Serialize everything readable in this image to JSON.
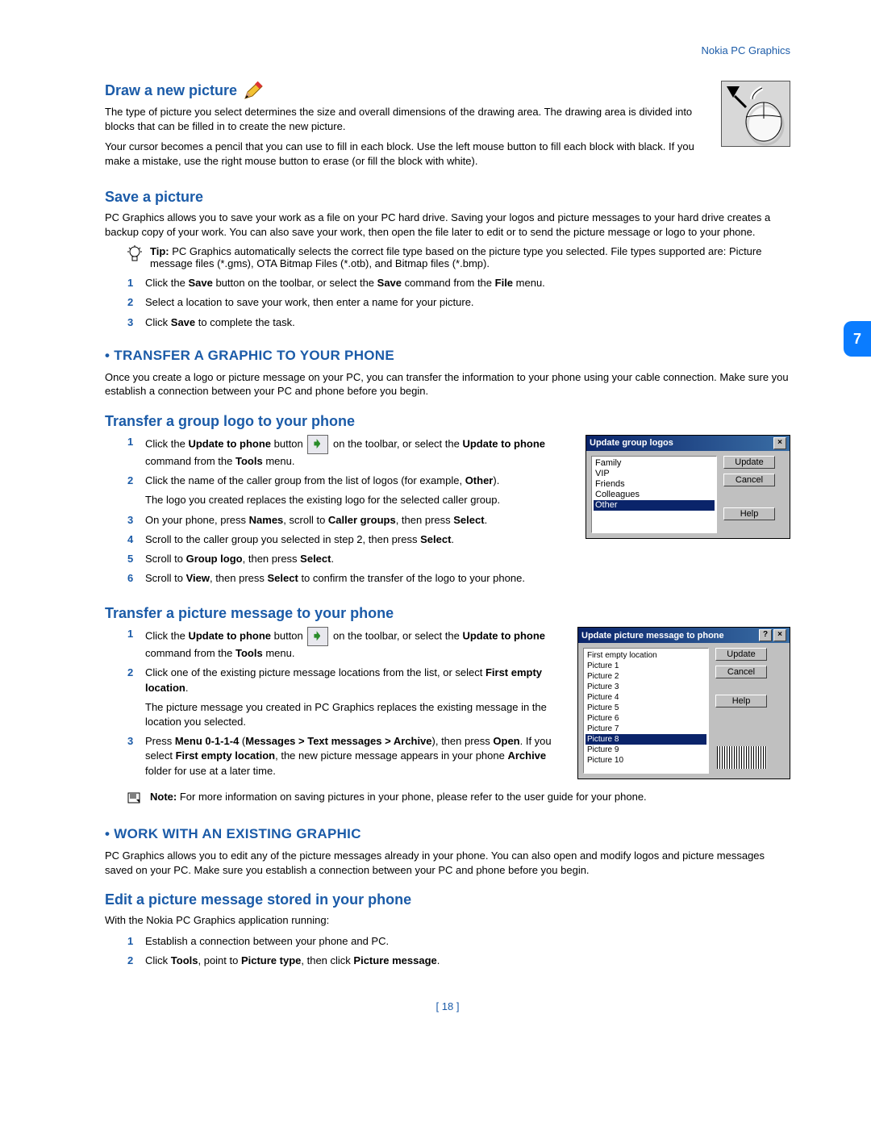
{
  "header": {
    "product": "Nokia PC Graphics"
  },
  "chapter_tab": "7",
  "page_number": "[ 18 ]",
  "sections": {
    "draw": {
      "title": "Draw a new picture",
      "p1": "The type of picture you select determines the size and overall dimensions of the drawing area. The drawing area is divided into blocks that can be filled in to create the new picture.",
      "p2": "Your cursor becomes a pencil that you can use to fill in each block. Use the left mouse button to fill each block with black. If you make a mistake, use the right mouse button to erase (or fill the block with white)."
    },
    "save": {
      "title": "Save a picture",
      "p1": "PC Graphics allows you to save your work as a file on your PC hard drive. Saving your logos and picture messages to your hard drive creates a backup copy of your work. You can also save your work, then open the file later to edit or to send the picture message or logo to your phone.",
      "tip_label": "Tip:",
      "tip_body": "PC Graphics automatically selects the correct file type based on the picture type you selected. File types supported are: Picture message files (*.gms), OTA Bitmap Files (*.otb), and Bitmap files (*.bmp).",
      "li1_a": "Click the ",
      "li1_b": "Save",
      "li1_c": " button on the toolbar, or select the ",
      "li1_d": "Save",
      "li1_e": " command from the ",
      "li1_f": "File",
      "li1_g": " menu.",
      "li2": "Select a location to save your work, then enter a name for your picture.",
      "li3_a": "Click ",
      "li3_b": "Save",
      "li3_c": " to complete the task."
    },
    "transfer": {
      "title": " • TRANSFER A GRAPHIC TO YOUR PHONE",
      "p1": "Once you create a logo or picture message on your PC, you can transfer the information to your phone using your cable connection. Make sure you establish a connection between your PC and phone before you begin."
    },
    "group_logo": {
      "title": "Transfer a group logo to your phone",
      "li1_a": "Click the ",
      "li1_b": "Update to phone",
      "li1_c": " button",
      "li1_d": "on the toolbar, or select the ",
      "li1_e": "Update to phone",
      "li1_f": " command from the ",
      "li1_g": "Tools",
      "li1_h": " menu.",
      "li2_a": "Click the name of the caller group from the list of logos (for example, ",
      "li2_b": "Other",
      "li2_c": ").",
      "follow2": "The logo you created replaces the existing logo for the selected caller group.",
      "li3_a": "On your phone, press ",
      "li3_b": "Names",
      "li3_c": ", scroll to ",
      "li3_d": "Caller groups",
      "li3_e": ", then press ",
      "li3_f": "Select",
      "li3_g": ".",
      "li4_a": "Scroll to the caller group you selected in step 2, then press ",
      "li4_b": "Select",
      "li4_c": ".",
      "li5_a": "Scroll to ",
      "li5_b": "Group logo",
      "li5_c": ", then press ",
      "li5_d": "Select",
      "li5_e": ".",
      "li6_a": "Scroll to ",
      "li6_b": "View",
      "li6_c": ", then press ",
      "li6_d": "Select",
      "li6_e": " to confirm the transfer of the logo to your phone.",
      "dialog": {
        "title": "Update group logos",
        "items": [
          "Family",
          "VIP",
          "Friends",
          "Colleagues",
          "Other"
        ],
        "btn_update": "Update",
        "btn_cancel": "Cancel",
        "btn_help": "Help"
      }
    },
    "pic_msg": {
      "title": "Transfer a picture message to your phone",
      "li1_a": "Click the ",
      "li1_b": "Update to phone",
      "li1_c": " button",
      "li1_d": "on the toolbar, or select the ",
      "li1_e": "Update to phone",
      "li1_f": " command from the ",
      "li1_g": "Tools",
      "li1_h": " menu.",
      "li2_a": "Click one of the existing picture message locations from the list, or select ",
      "li2_b": "First empty location",
      "li2_c": ".",
      "follow2": "The picture message you created in PC Graphics replaces the existing message in the location you selected.",
      "li3_a": "Press ",
      "li3_b": "Menu 0-1-1-4",
      "li3_c": " (",
      "li3_d": "Messages > Text messages > Archive",
      "li3_e": "), then press ",
      "li3_f": "Open",
      "li3_g": ". If you select ",
      "li3_h": "First empty location",
      "li3_i": ", the new picture message appears in your phone ",
      "li3_j": "Archive",
      "li3_k": " folder for use at a later time.",
      "note_label": "Note:",
      "note_body": "For more information on saving pictures in your phone, please refer to the user guide for your phone.",
      "dialog": {
        "title": "Update picture message to phone",
        "items": [
          "First empty location",
          "Picture 1",
          "Picture 2",
          "Picture 3",
          "Picture 4",
          "Picture 5",
          "Picture 6",
          "Picture 7",
          "Picture 8",
          "Picture 9",
          "Picture 10"
        ],
        "selected_index": 8,
        "btn_update": "Update",
        "btn_cancel": "Cancel",
        "btn_help": "Help"
      }
    },
    "work": {
      "title": " • WORK WITH AN EXISTING GRAPHIC",
      "p1": "PC Graphics allows you to edit any of the picture messages already in your phone. You can also open and modify logos and picture messages saved on your PC. Make sure you establish a connection between your PC and phone before you begin."
    },
    "edit": {
      "title": "Edit a picture message stored in your phone",
      "p1": "With the Nokia PC Graphics application running:",
      "li1": "Establish a connection between your phone and PC.",
      "li2_a": "Click ",
      "li2_b": "Tools",
      "li2_c": ", point to ",
      "li2_d": "Picture type",
      "li2_e": ", then click ",
      "li2_f": "Picture message",
      "li2_g": "."
    }
  },
  "colors": {
    "brand_blue": "#1b5ba8",
    "tab_blue": "#0a7cff",
    "win_gray": "#c0c0c0",
    "win_title_dark": "#0a246a",
    "win_sel": "#0a246a"
  }
}
